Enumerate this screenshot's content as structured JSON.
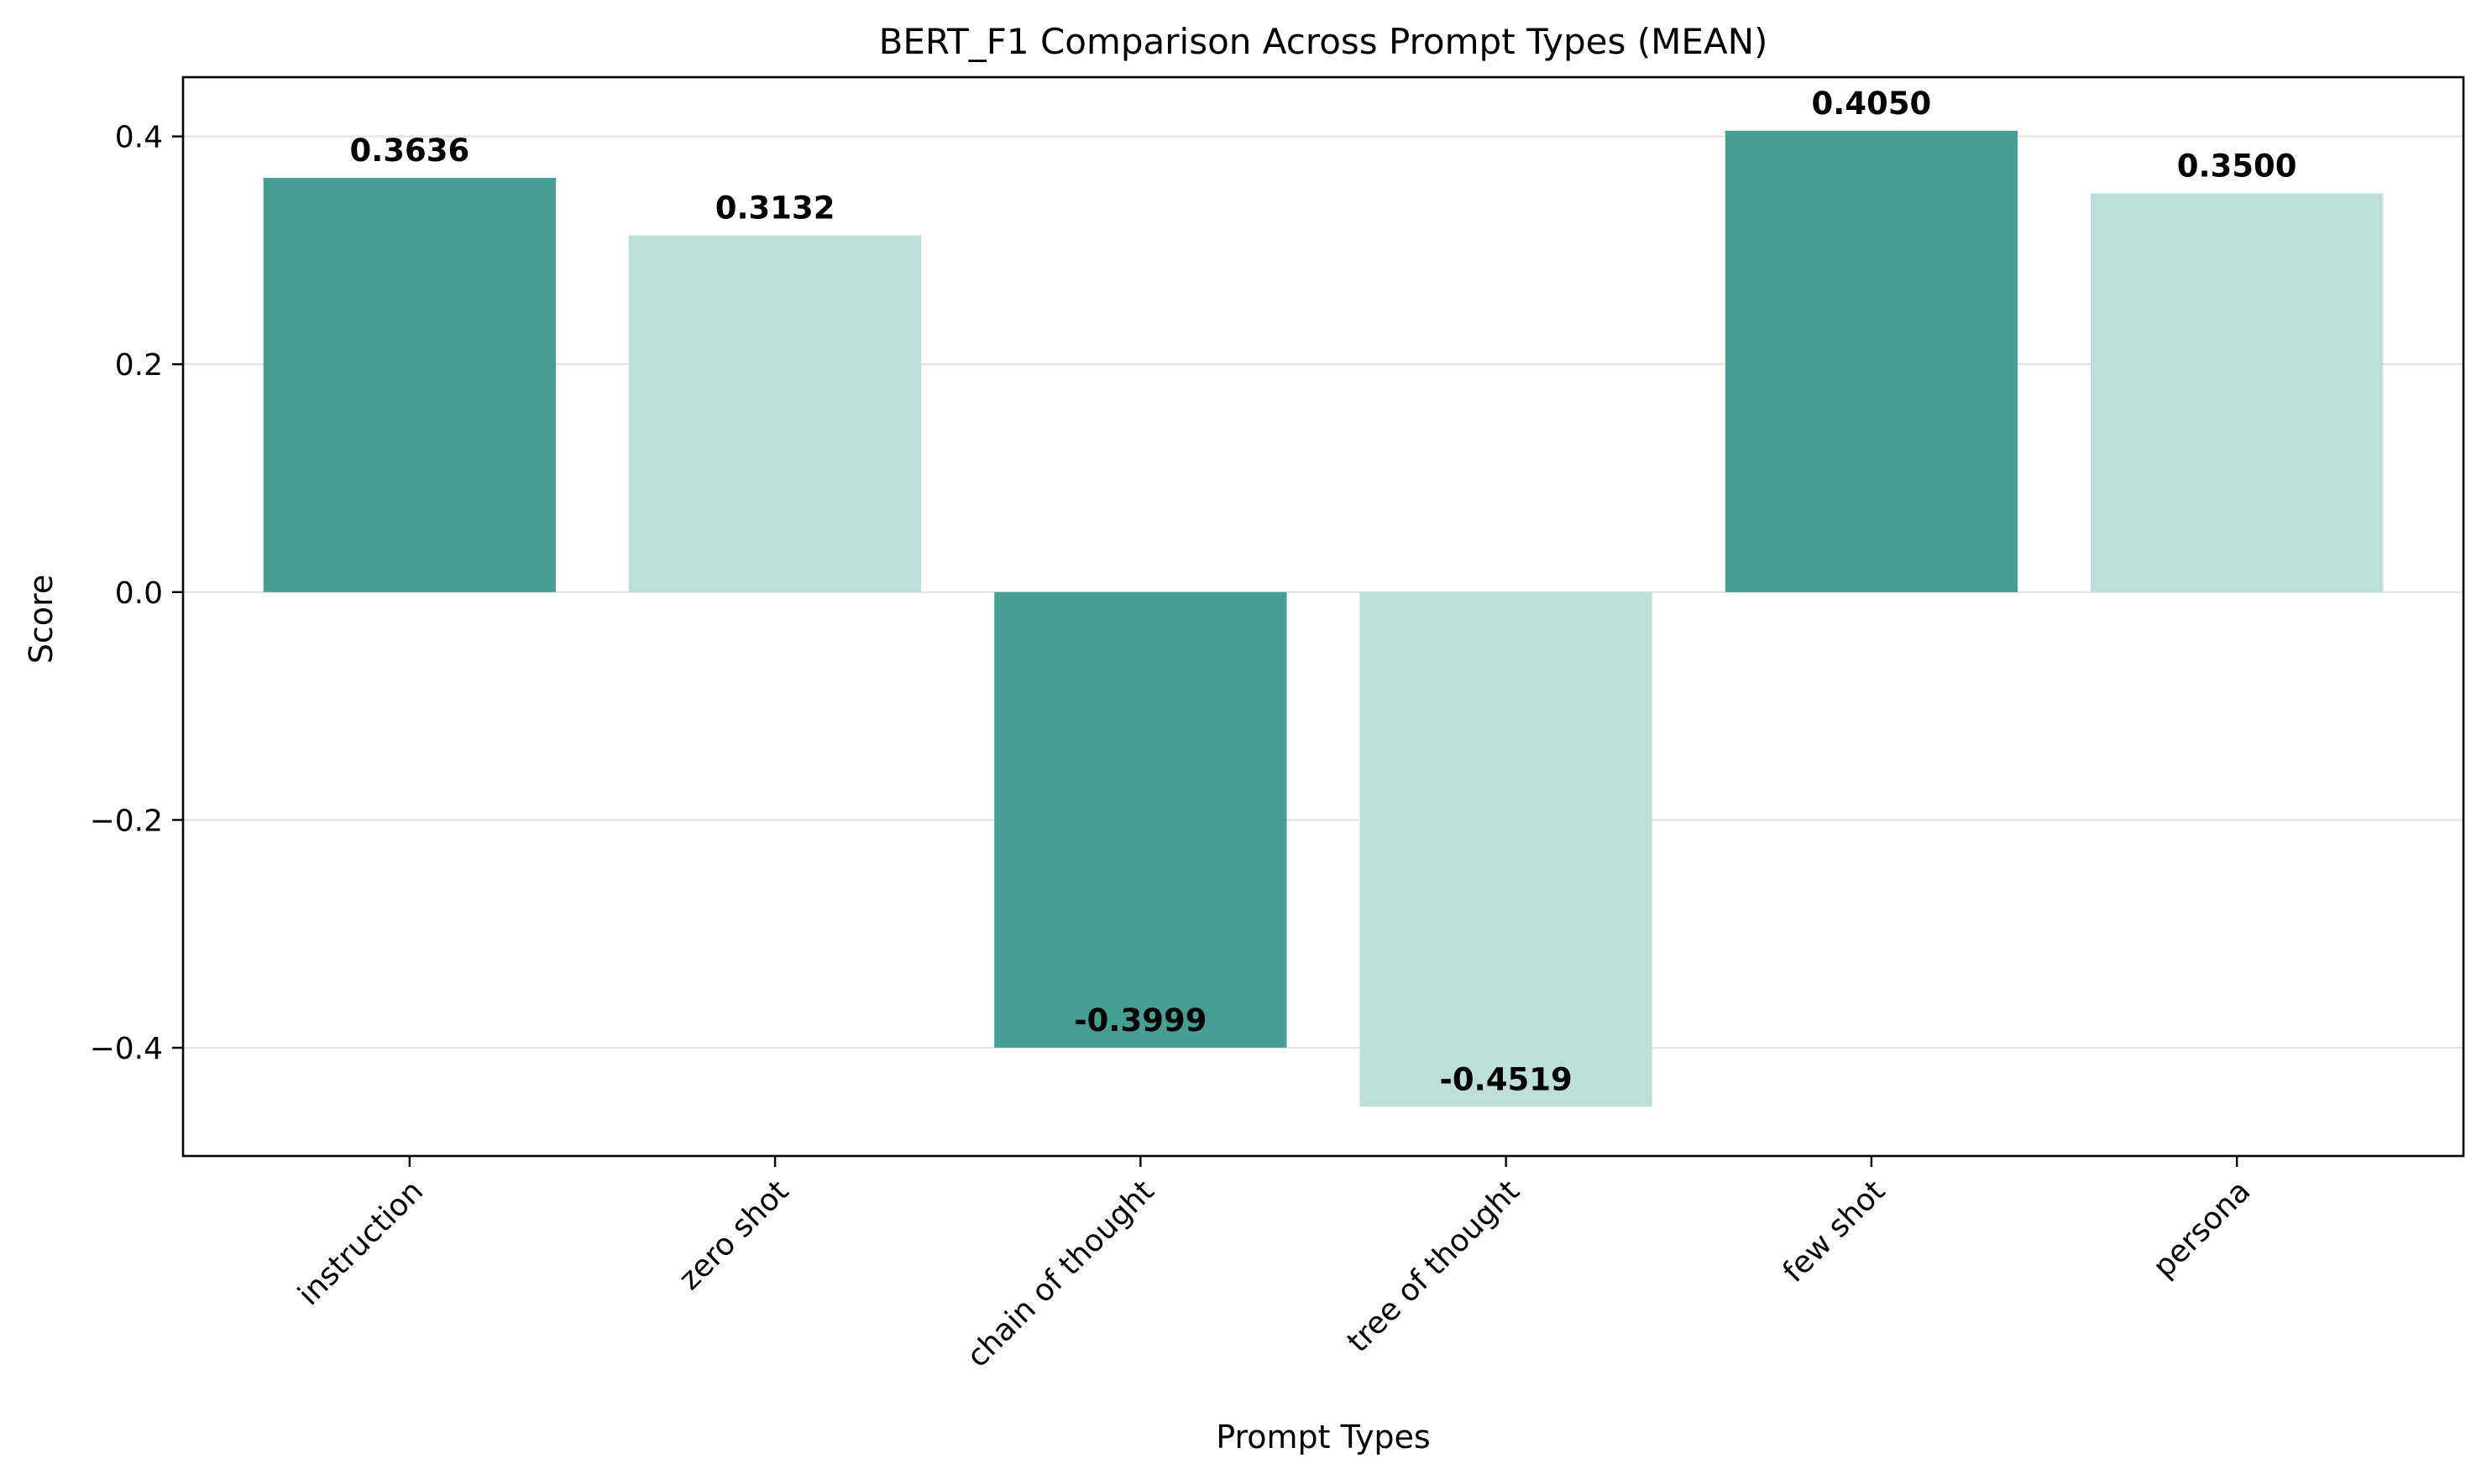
{
  "chart_data": {
    "type": "bar",
    "title": "BERT_F1 Comparison Across Prompt Types (MEAN)",
    "xlabel": "Prompt Types",
    "ylabel": "Score",
    "categories": [
      "instruction",
      "zero shot",
      "chain of thought",
      "tree of thought",
      "few shot",
      "persona"
    ],
    "values": [
      0.3636,
      0.3132,
      -0.3999,
      -0.4519,
      0.405,
      0.35
    ],
    "value_labels": [
      "0.3636",
      "0.3132",
      "-0.3999",
      "-0.4519",
      "0.4050",
      "0.3500"
    ],
    "y_ticks": [
      -0.4,
      -0.2,
      0.0,
      0.2,
      0.4
    ],
    "y_tick_labels": [
      "−0.4",
      "−0.2",
      "0.0",
      "0.2",
      "0.4"
    ],
    "ylim": [
      -0.495,
      0.452
    ],
    "grid": "horizontal",
    "colors": [
      "#479e92",
      "#bcdfd9",
      "#479e92",
      "#bcdfd9",
      "#479e92",
      "#bcdfd9"
    ],
    "gridline_color": "#e3e3e3",
    "axis_color": "#000000"
  }
}
